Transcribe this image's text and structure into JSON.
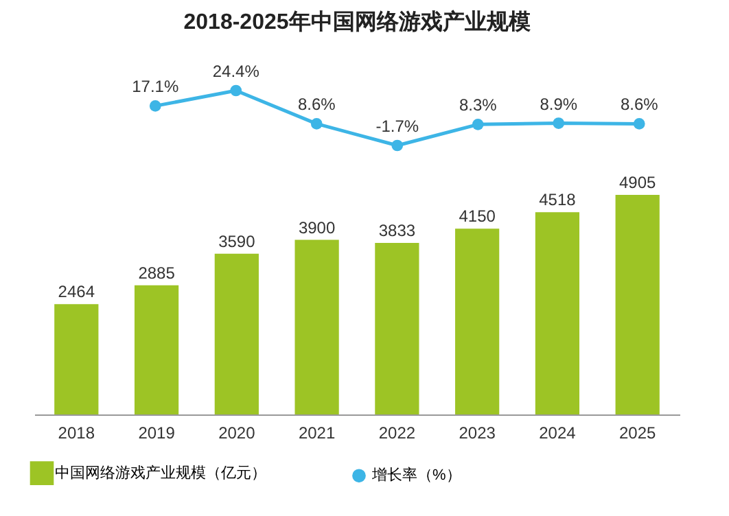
{
  "chart_data": [
    {
      "type": "line",
      "title": "2018-2025年中国网络游戏产业规模",
      "categories": [
        "2018",
        "2019",
        "2020",
        "2021",
        "2022",
        "2023",
        "2024",
        "2025"
      ],
      "series": [
        {
          "name": "增长率（%）",
          "color": "#3db5e6",
          "values": [
            null,
            17.1,
            24.4,
            8.6,
            -1.7,
            8.3,
            8.9,
            8.6
          ],
          "value_labels": [
            null,
            "17.1%",
            "24.4%",
            "8.6%",
            "-1.7%",
            "8.3%",
            "8.9%",
            "8.6%"
          ]
        }
      ],
      "marker": "circle",
      "tick_labels": false,
      "legend": "bottom"
    },
    {
      "type": "bar",
      "categories": [
        "2018",
        "2019",
        "2020",
        "2021",
        "2022",
        "2023",
        "2024",
        "2025"
      ],
      "series": [
        {
          "name": "中国网络游戏产业规模（亿元）",
          "color": "#9dc425",
          "values": [
            2464,
            2885,
            3590,
            3900,
            3833,
            4150,
            4518,
            4905
          ]
        }
      ],
      "data_labels": true,
      "legend": "bottom",
      "tick_labels": "x"
    }
  ]
}
